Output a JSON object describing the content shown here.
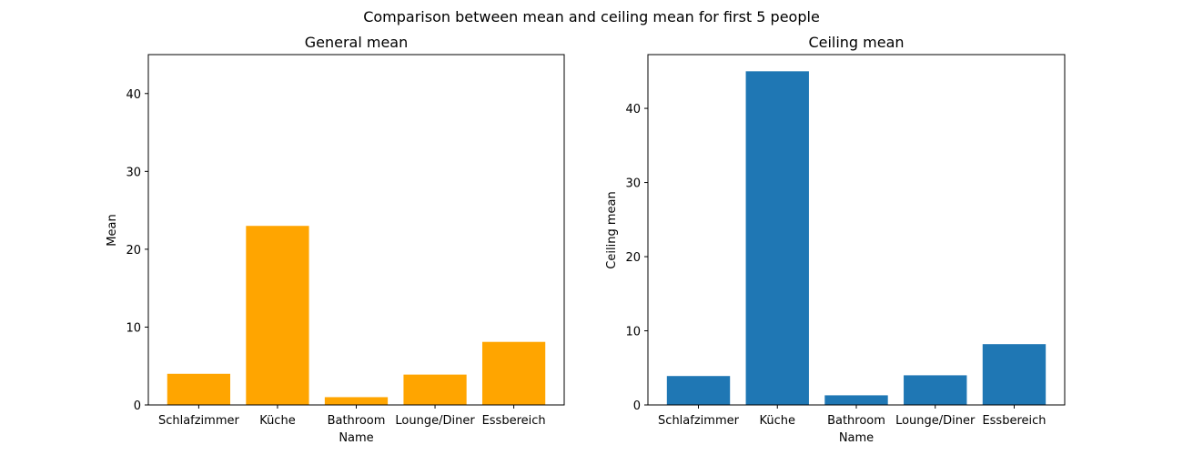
{
  "figure": {
    "suptitle": "Comparison between mean and ceiling mean for first 5 people"
  },
  "chart_data": [
    {
      "type": "bar",
      "title": "General mean",
      "xlabel": "Name",
      "ylabel": "Mean",
      "categories": [
        "Schlafzimmer",
        "Küche",
        "Bathroom",
        "Lounge/Diner",
        "Essbereich"
      ],
      "values": [
        4.0,
        23.0,
        1.0,
        3.9,
        8.1
      ],
      "ylim": [
        0,
        45
      ],
      "yticks": [
        "0",
        "10",
        "20",
        "30",
        "40"
      ],
      "color": "#ffa500",
      "grid": false,
      "legend": "none"
    },
    {
      "type": "bar",
      "title": "Ceiling mean",
      "xlabel": "Name",
      "ylabel": "Ceiling mean",
      "categories": [
        "Schlafzimmer",
        "Küche",
        "Bathroom",
        "Lounge/Diner",
        "Essbereich"
      ],
      "values": [
        3.9,
        45.0,
        1.3,
        4.0,
        8.2
      ],
      "ylim": [
        0,
        47.25
      ],
      "yticks": [
        "0",
        "10",
        "20",
        "30",
        "40"
      ],
      "color": "#1f77b4",
      "grid": false,
      "legend": "none"
    }
  ]
}
